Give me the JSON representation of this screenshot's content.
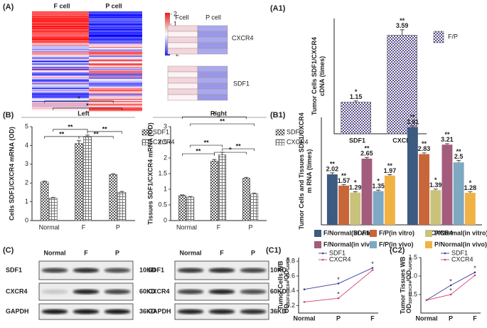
{
  "heatmap": {
    "panel": "(A)",
    "columns": [
      "F cell",
      "P cell"
    ],
    "scale": [
      2,
      1,
      0,
      -1,
      -2
    ]
  },
  "heatmap_detail": {
    "columns": [
      "Fcell",
      "P cell"
    ],
    "genes": [
      "CXCR4",
      "SDF1"
    ]
  },
  "blot_panel": "(C)",
  "blots": [
    {
      "headers": [
        "Normal",
        "F",
        "P"
      ],
      "rows": [
        "SDF1",
        "CXCR4",
        "GAPDH"
      ],
      "sizes": [
        "10KD",
        "60KD",
        "36KD"
      ]
    },
    {
      "headers": [
        "Normal",
        "F",
        "P"
      ],
      "rows": [
        "SDF1",
        "CXCR4",
        "GAPDH"
      ],
      "sizes": [
        "10KD",
        "60KD",
        "36KD"
      ]
    }
  ],
  "chart_data": [
    {
      "type": "bar",
      "panel": "(A1)",
      "ylabel": [
        "Tumor Cells SDF1/CXCR4",
        "cDNA (times)"
      ],
      "categories": [
        "SDF1",
        "CXCR4"
      ],
      "ylim": [
        0,
        4.2
      ],
      "data_labels": true,
      "series": [
        {
          "name": "F/P",
          "color": "#5b4f8c",
          "pattern": "checker",
          "values": [
            1.15,
            3.59
          ],
          "errors": [
            0.05,
            0.2
          ],
          "significance": [
            "*",
            "**"
          ]
        }
      ]
    },
    {
      "type": "bar",
      "panel": "(B)",
      "title": "Left",
      "ylabel": [
        "Cells SDF1/CXCR4 mRNA (OD)"
      ],
      "categories": [
        "Normal",
        "F",
        "P"
      ],
      "ylim": [
        0,
        5
      ],
      "yticks": [
        0,
        1,
        2,
        3,
        4,
        5
      ],
      "brackets": [
        "*",
        "*",
        "**",
        "**",
        "**",
        "**"
      ],
      "series": [
        {
          "name": "SDF1",
          "color": "#555555",
          "pattern": "checker",
          "values": [
            2.05,
            4.1,
            2.45
          ],
          "errors": [
            0.05,
            0.15,
            0.05
          ]
        },
        {
          "name": "CXCR4",
          "color": "#777777",
          "pattern": "grid",
          "values": [
            1.2,
            4.45,
            1.5
          ],
          "errors": [
            0.04,
            0.1,
            0.05
          ]
        }
      ]
    },
    {
      "type": "bar",
      "title": "Right",
      "ylabel": [
        "Tissues SDF1/CXCR4 mRNA (OD)"
      ],
      "categories": [
        "Normal",
        "F",
        "P"
      ],
      "ylim": [
        0,
        3
      ],
      "yticks": [
        0,
        0.5,
        1,
        1.5,
        2,
        2.5,
        3
      ],
      "brackets": [
        "*",
        "**",
        "**",
        "**",
        "*",
        "**"
      ],
      "series": [
        {
          "name": "SDF1",
          "color": "#555555",
          "pattern": "checker",
          "values": [
            0.8,
            1.9,
            1.35
          ],
          "errors": [
            0.02,
            0.05,
            0.03
          ]
        },
        {
          "name": "CXCR4",
          "color": "#777777",
          "pattern": "grid",
          "values": [
            0.75,
            2.1,
            0.85
          ],
          "errors": [
            0.02,
            0.08,
            0.03
          ]
        }
      ]
    },
    {
      "type": "bar",
      "panel": "(B1)",
      "ylabel": [
        "Tumor Cells and Tissues SDF1/CXCR4",
        "m RNA (times)"
      ],
      "categories": [
        "SDF1",
        "CXCR4"
      ],
      "ylim": [
        0,
        4.3
      ],
      "data_labels": true,
      "series": [
        {
          "name": "F/Normal(in vitro)",
          "color": "#3d5a80",
          "values": [
            2.02,
            3.91
          ],
          "errors": [
            0.06,
            0.05
          ],
          "significance": [
            "**",
            "**"
          ]
        },
        {
          "name": "F/P(in vitro)",
          "color": "#c8663a",
          "values": [
            1.57,
            2.83
          ],
          "errors": [
            0.04,
            0.05
          ],
          "significance": [
            "**",
            "**"
          ]
        },
        {
          "name": "P/Normal(in vitro)",
          "color": "#c9c27a",
          "values": [
            1.29,
            1.39
          ],
          "errors": [
            0.04,
            0.04
          ],
          "significance": [
            "*",
            "*"
          ]
        },
        {
          "name": "F/Normal(in vivo)",
          "color": "#a35c7c",
          "values": [
            2.65,
            3.21
          ],
          "errors": [
            0.05,
            0.04
          ],
          "significance": [
            "**",
            "**"
          ]
        },
        {
          "name": "F/P(in vivo)",
          "color": "#7fa8c2",
          "values": [
            1.35,
            2.5
          ],
          "errors": [
            0.04,
            0.08
          ],
          "significance": [
            "*",
            "**"
          ]
        },
        {
          "name": "P/Normal(in vivo)",
          "color": "#f0b244",
          "values": [
            1.97,
            1.28
          ],
          "errors": [
            0.04,
            0.04
          ],
          "significance": [
            "**",
            "*"
          ]
        }
      ]
    },
    {
      "type": "line",
      "panel": "(C1)",
      "ylabel": [
        "Tumor Cells WB"
      ],
      "yformula": {
        "base": "OD",
        "sub": "SDF1/CXCR4",
        "base2": "/OD",
        "sub2": "GAPDH"
      },
      "categories": [
        "Normal",
        "P",
        "F"
      ],
      "ylim": [
        0.1,
        0.85
      ],
      "yticks": [
        0.2,
        0.4,
        0.6,
        0.8
      ],
      "series": [
        {
          "name": "SDF1",
          "color": "#3a3a9a",
          "values": [
            0.42,
            0.5,
            0.71
          ],
          "significance": [
            null,
            "*",
            "*"
          ]
        },
        {
          "name": "CXCR4",
          "color": "#d04070",
          "values": [
            0.25,
            0.3,
            0.68
          ],
          "significance": [
            null,
            "*",
            null
          ]
        }
      ]
    },
    {
      "type": "line",
      "panel": "(C2)",
      "ylabel": [
        "Tumor Tissues WB"
      ],
      "yformula": {
        "base": "OD",
        "sub": "SDF1/CXCR4",
        "base2": "/OD",
        "sub2": "GAPDH"
      },
      "categories": [
        "Normal",
        "P",
        "F"
      ],
      "ylim": [
        0,
        1.5
      ],
      "yticks": [
        0.5,
        {
          "value": 1,
          "label": "1.0"
        },
        1.5
      ],
      "series": [
        {
          "name": "SDF1",
          "color": "#3a3a9a",
          "values": [
            0.35,
            0.75,
            1.1
          ],
          "significance": [
            null,
            "*",
            "*"
          ]
        },
        {
          "name": "CXCR4",
          "color": "#d04070",
          "values": [
            0.35,
            0.5,
            1.02
          ],
          "significance": [
            null,
            "*",
            null
          ]
        }
      ]
    }
  ]
}
